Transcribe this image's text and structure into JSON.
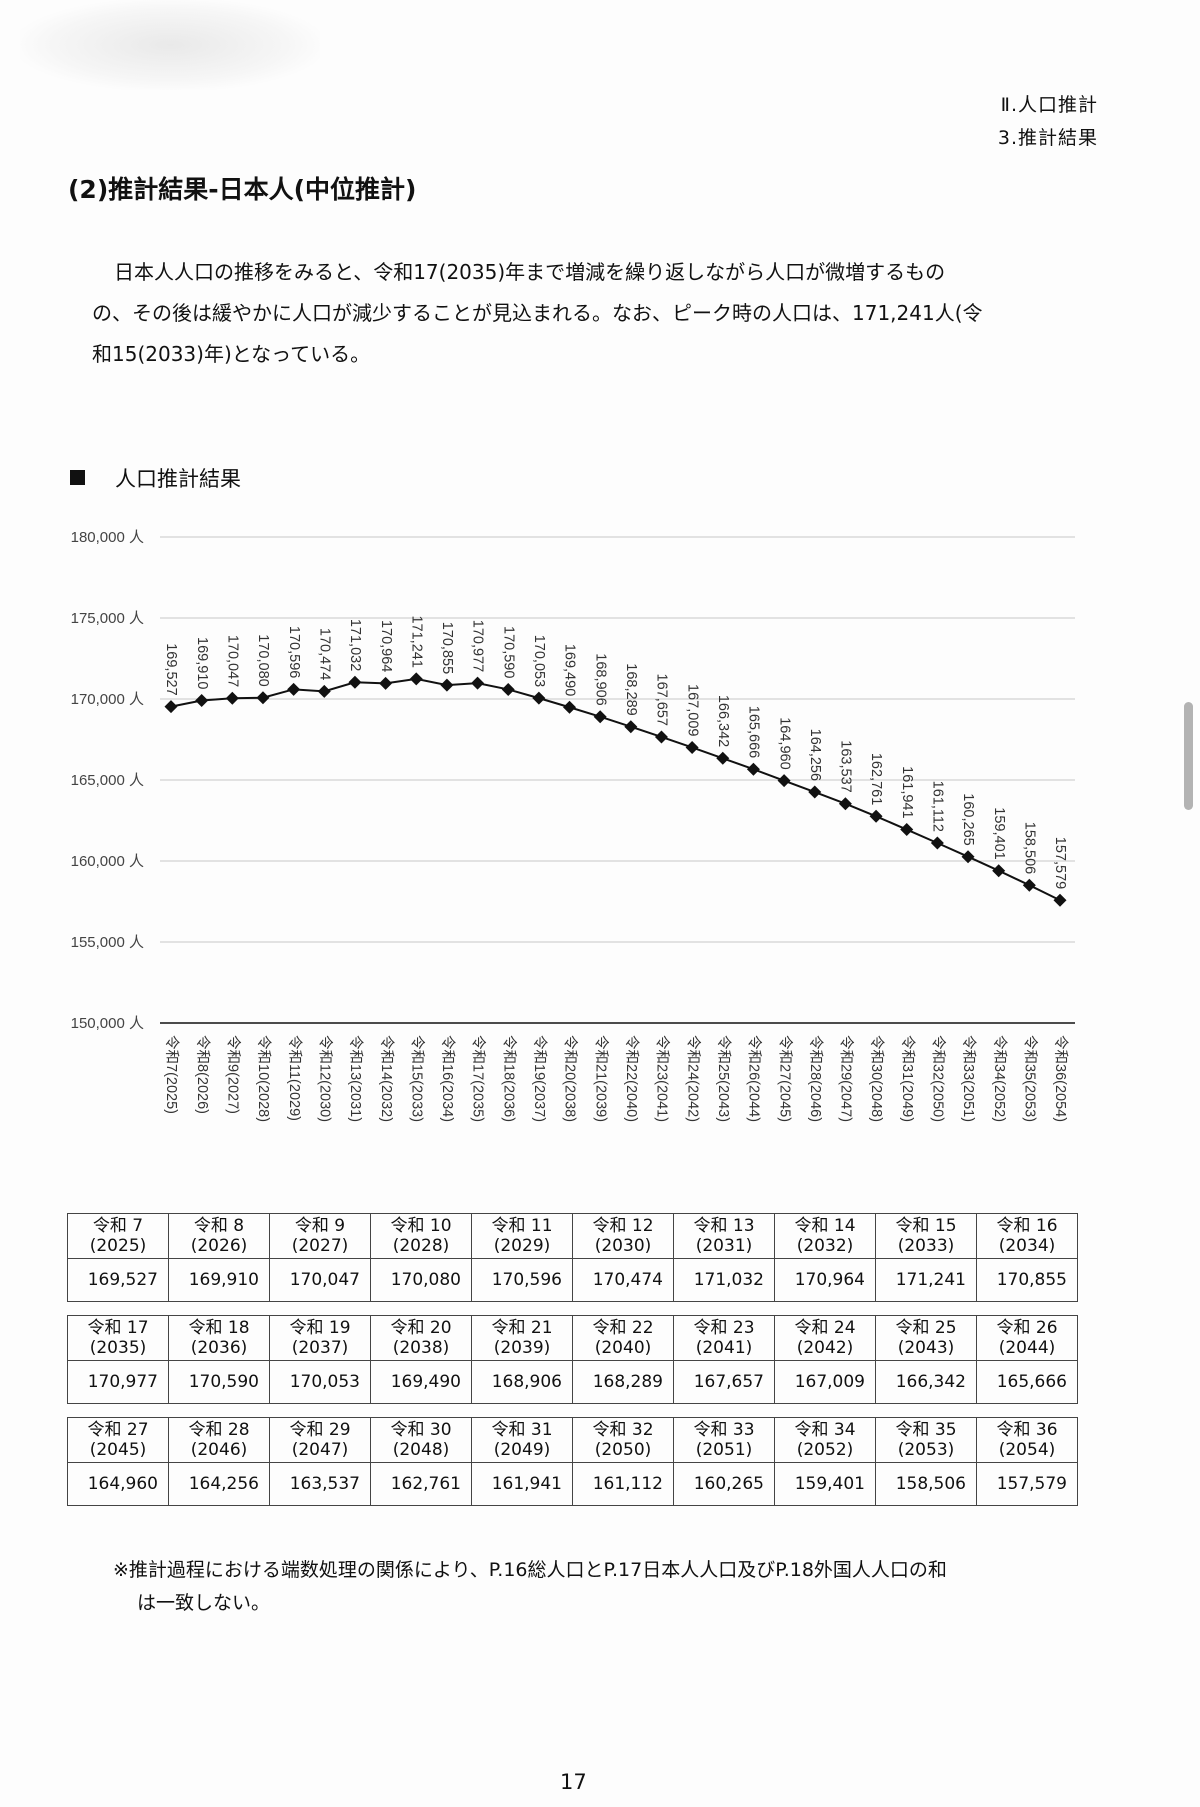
{
  "header": {
    "line1": "Ⅱ.人口推計",
    "line2": "3.推計結果"
  },
  "section_title": "(2)推計結果-日本人(中位推計)",
  "paragraph": [
    "日本人人口の推移をみると、令和17(2035)年まで増減を繰り返しながら人口が微増するもの",
    "の、その後は緩やかに人口が減少することが見込まれる。なお、ピーク時の人口は、171,241人(令",
    "和15(2033)年)となっている。"
  ],
  "chart_title": "人口推計結果",
  "chart_data": {
    "type": "line",
    "title": "人口推計結果",
    "ylim": [
      150000,
      180000
    ],
    "y_ticks": [
      "150,000 人",
      "155,000 人",
      "160,000 人",
      "165,000 人",
      "170,000 人",
      "175,000 人",
      "180,000 人"
    ],
    "grid": true,
    "marker": "diamond",
    "x": [
      "令和7(2025)",
      "令和8(2026)",
      "令和9(2027)",
      "令和10(2028)",
      "令和11(2029)",
      "令和12(2030)",
      "令和13(2031)",
      "令和14(2032)",
      "令和15(2033)",
      "令和16(2034)",
      "令和17(2035)",
      "令和18(2036)",
      "令和19(2037)",
      "令和20(2038)",
      "令和21(2039)",
      "令和22(2040)",
      "令和23(2041)",
      "令和24(2042)",
      "令和25(2043)",
      "令和26(2044)",
      "令和27(2045)",
      "令和28(2046)",
      "令和29(2047)",
      "令和30(2048)",
      "令和31(2049)",
      "令和32(2050)",
      "令和33(2051)",
      "令和34(2052)",
      "令和35(2053)",
      "令和36(2054)"
    ],
    "values": [
      169527,
      169910,
      170047,
      170080,
      170596,
      170474,
      171032,
      170964,
      171241,
      170855,
      170977,
      170590,
      170053,
      169490,
      168906,
      168289,
      167657,
      167009,
      166342,
      165666,
      164960,
      164256,
      163537,
      162761,
      161941,
      161112,
      160265,
      159401,
      158506,
      157579
    ],
    "data_labels": [
      "169,527",
      "169,910",
      "170,047",
      "170,080",
      "170,596",
      "170,474",
      "171,032",
      "170,964",
      "171,241",
      "170,855",
      "170,977",
      "170,590",
      "170,053",
      "169,490",
      "168,906",
      "168,289",
      "167,657",
      "167,009",
      "166,342",
      "165,666",
      "164,960",
      "164,256",
      "163,537",
      "162,761",
      "161,941",
      "161,112",
      "160,265",
      "159,401",
      "158,506",
      "157,579"
    ]
  },
  "tables": [
    {
      "headers": [
        [
          "令和 7",
          "(2025)"
        ],
        [
          "令和 8",
          "(2026)"
        ],
        [
          "令和 9",
          "(2027)"
        ],
        [
          "令和 10",
          "(2028)"
        ],
        [
          "令和 11",
          "(2029)"
        ],
        [
          "令和 12",
          "(2030)"
        ],
        [
          "令和 13",
          "(2031)"
        ],
        [
          "令和 14",
          "(2032)"
        ],
        [
          "令和 15",
          "(2033)"
        ],
        [
          "令和 16",
          "(2034)"
        ]
      ],
      "values": [
        "169,527",
        "169,910",
        "170,047",
        "170,080",
        "170,596",
        "170,474",
        "171,032",
        "170,964",
        "171,241",
        "170,855"
      ]
    },
    {
      "headers": [
        [
          "令和 17",
          "(2035)"
        ],
        [
          "令和 18",
          "(2036)"
        ],
        [
          "令和 19",
          "(2037)"
        ],
        [
          "令和 20",
          "(2038)"
        ],
        [
          "令和 21",
          "(2039)"
        ],
        [
          "令和 22",
          "(2040)"
        ],
        [
          "令和 23",
          "(2041)"
        ],
        [
          "令和 24",
          "(2042)"
        ],
        [
          "令和 25",
          "(2043)"
        ],
        [
          "令和 26",
          "(2044)"
        ]
      ],
      "values": [
        "170,977",
        "170,590",
        "170,053",
        "169,490",
        "168,906",
        "168,289",
        "167,657",
        "167,009",
        "166,342",
        "165,666"
      ]
    },
    {
      "headers": [
        [
          "令和 27",
          "(2045)"
        ],
        [
          "令和 28",
          "(2046)"
        ],
        [
          "令和 29",
          "(2047)"
        ],
        [
          "令和 30",
          "(2048)"
        ],
        [
          "令和 31",
          "(2049)"
        ],
        [
          "令和 32",
          "(2050)"
        ],
        [
          "令和 33",
          "(2051)"
        ],
        [
          "令和 34",
          "(2052)"
        ],
        [
          "令和 35",
          "(2053)"
        ],
        [
          "令和 36",
          "(2054)"
        ]
      ],
      "values": [
        "164,960",
        "164,256",
        "163,537",
        "162,761",
        "161,941",
        "161,112",
        "160,265",
        "159,401",
        "158,506",
        "157,579"
      ]
    }
  ],
  "note": [
    "※推計過程における端数処理の関係により、P.16総人口とP.17日本人人口及びP.18外国人人口の和",
    "は一致しない。"
  ],
  "page_number": "17"
}
